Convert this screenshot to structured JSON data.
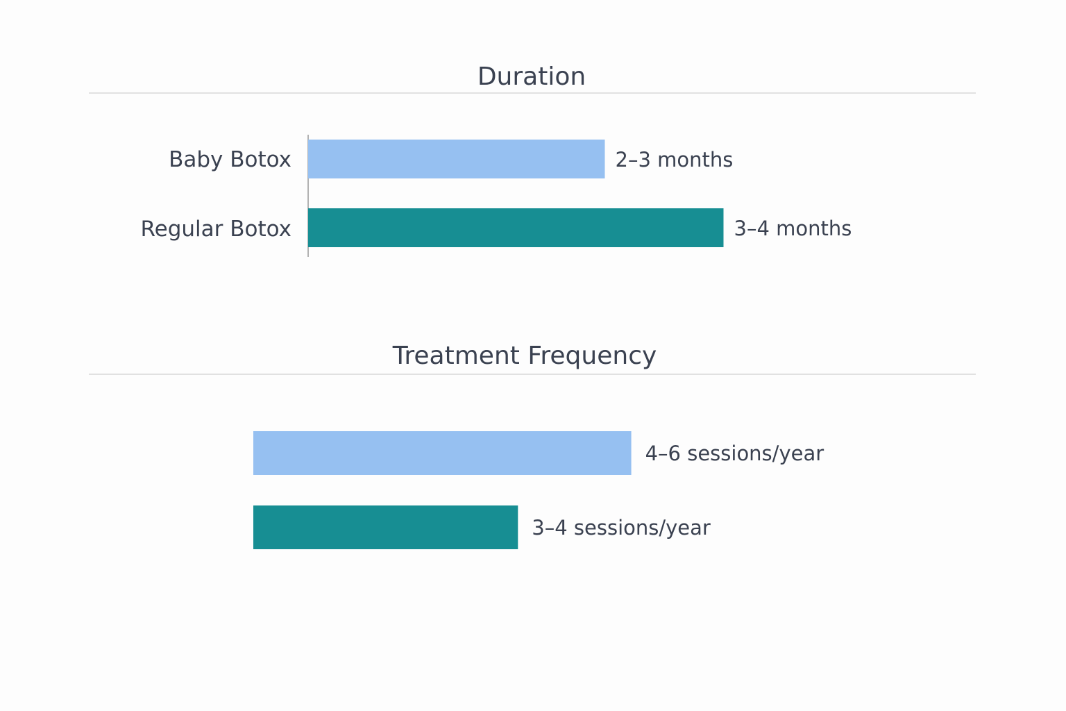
{
  "colors": {
    "baby": "#96c0f1",
    "regular": "#178e93",
    "divider": "#d8d8d8",
    "axis": "#9a9a9a",
    "text": "#3a4150"
  },
  "chart_data": [
    {
      "type": "bar",
      "orientation": "horizontal",
      "title": "Duration",
      "categories": [
        "Baby Botox",
        "Regular Botox"
      ],
      "values": [
        2.5,
        3.5
      ],
      "value_labels": [
        "2–3 months",
        "3–4 months"
      ],
      "xlim": [
        0,
        4
      ],
      "grid": false,
      "show_axis_line": true
    },
    {
      "type": "bar",
      "orientation": "horizontal",
      "title": "Treatment Frequency",
      "categories": [
        "",
        ""
      ],
      "values": [
        5,
        3.5
      ],
      "value_labels": [
        "4–6 sessions/year",
        "3–4 sessions/year"
      ],
      "xlim": [
        0,
        5.6
      ],
      "grid": false,
      "show_axis_line": false
    }
  ]
}
